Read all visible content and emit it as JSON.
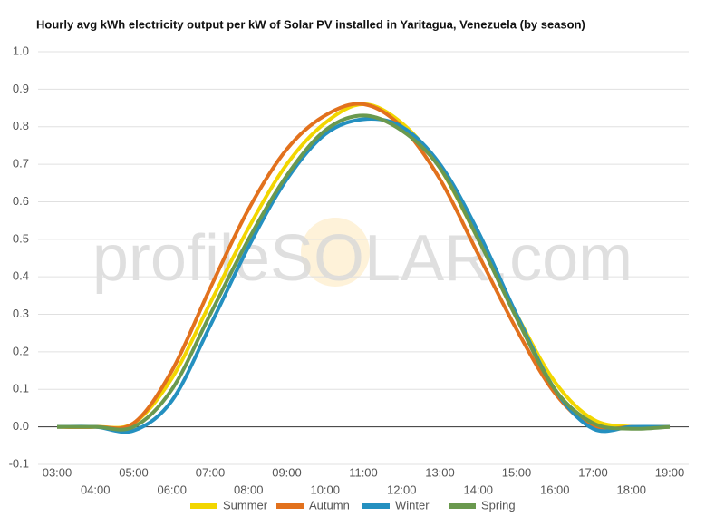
{
  "chart_data": {
    "type": "line",
    "title": "Hourly avg kWh electricity output per kW of Solar PV installed in Yaritagua, Venezuela (by season)",
    "watermark": "profileSOLAR.com",
    "categories": [
      "03:00",
      "04:00",
      "05:00",
      "06:00",
      "07:00",
      "08:00",
      "09:00",
      "10:00",
      "11:00",
      "12:00",
      "13:00",
      "14:00",
      "15:00",
      "16:00",
      "17:00",
      "18:00",
      "19:00"
    ],
    "series": [
      {
        "name": "Summer",
        "color": "#f2d600",
        "values": [
          0,
          0,
          0.01,
          0.13,
          0.33,
          0.53,
          0.7,
          0.81,
          0.86,
          0.81,
          0.69,
          0.5,
          0.3,
          0.12,
          0.02,
          0,
          0
        ]
      },
      {
        "name": "Autumn",
        "color": "#e2711d",
        "values": [
          0,
          0,
          0.01,
          0.15,
          0.37,
          0.58,
          0.74,
          0.83,
          0.86,
          0.8,
          0.66,
          0.46,
          0.26,
          0.09,
          0,
          0,
          0
        ]
      },
      {
        "name": "Winter",
        "color": "#2490c0",
        "values": [
          0,
          0,
          -0.01,
          0.07,
          0.27,
          0.48,
          0.66,
          0.78,
          0.82,
          0.8,
          0.7,
          0.52,
          0.3,
          0.1,
          -0.005,
          0,
          0
        ]
      },
      {
        "name": "Spring",
        "color": "#6a994e",
        "values": [
          0,
          0,
          0,
          0.1,
          0.3,
          0.5,
          0.67,
          0.79,
          0.83,
          0.79,
          0.69,
          0.5,
          0.29,
          0.1,
          0.01,
          -0.005,
          0
        ]
      }
    ],
    "ylim": [
      -0.1,
      1.0
    ],
    "yticks": [
      -0.1,
      {
        "value": 0,
        "label": "0.0"
      },
      0.1,
      0.2,
      0.3,
      0.4,
      0.5,
      0.6,
      0.7,
      0.8,
      0.9,
      {
        "value": 1,
        "label": "1.0"
      }
    ],
    "grid": true,
    "legend": "bottom"
  }
}
